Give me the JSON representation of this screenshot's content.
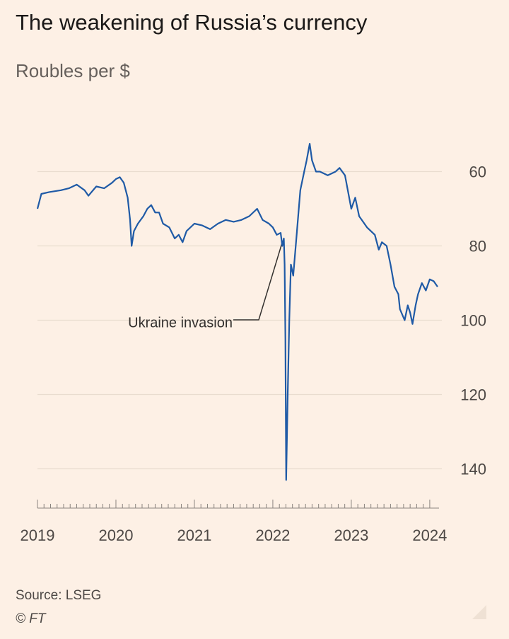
{
  "chart_data": {
    "type": "line",
    "title": "The weakening of Russia’s currency",
    "subtitle": "Roubles per $",
    "x": [
      2019.0,
      2019.05,
      2019.15,
      2019.3,
      2019.4,
      2019.5,
      2019.6,
      2019.65,
      2019.75,
      2019.85,
      2019.95,
      2020.0,
      2020.05,
      2020.1,
      2020.15,
      2020.18,
      2020.2,
      2020.23,
      2020.28,
      2020.35,
      2020.4,
      2020.45,
      2020.5,
      2020.55,
      2020.6,
      2020.68,
      2020.75,
      2020.8,
      2020.85,
      2020.9,
      2021.0,
      2021.1,
      2021.2,
      2021.3,
      2021.4,
      2021.5,
      2021.6,
      2021.7,
      2021.8,
      2021.87,
      2021.95,
      2022.0,
      2022.05,
      2022.1,
      2022.12,
      2022.14,
      2022.15,
      2022.16,
      2022.17,
      2022.19,
      2022.21,
      2022.23,
      2022.26,
      2022.3,
      2022.35,
      2022.4,
      2022.43,
      2022.47,
      2022.5,
      2022.55,
      2022.6,
      2022.7,
      2022.8,
      2022.85,
      2022.92,
      2023.0,
      2023.05,
      2023.1,
      2023.2,
      2023.3,
      2023.35,
      2023.39,
      2023.45,
      2023.5,
      2023.55,
      2023.6,
      2023.62,
      2023.68,
      2023.72,
      2023.75,
      2023.78,
      2023.82,
      2023.85,
      2023.9,
      2023.95,
      2024.0,
      2024.05,
      2024.1
    ],
    "series": [
      {
        "name": "Roubles per $",
        "color": "#1f5aa6",
        "values": [
          70,
          66,
          65.5,
          65,
          64.5,
          63.5,
          65,
          66.5,
          64,
          64.5,
          63,
          62,
          61.5,
          63,
          67,
          73,
          80,
          76,
          74,
          72,
          70,
          69,
          71,
          71,
          74,
          75,
          78,
          77,
          79,
          76,
          74,
          74.5,
          75.5,
          74,
          73,
          73.5,
          73,
          72,
          70,
          73,
          74,
          75,
          77,
          76.5,
          80,
          78,
          85,
          105,
          143,
          120,
          100,
          85,
          88,
          78,
          65,
          60,
          57,
          52.5,
          57,
          60,
          60,
          61,
          60,
          59,
          61,
          70,
          67,
          72,
          75,
          77,
          81,
          79,
          80,
          85,
          91,
          93,
          97,
          100,
          96,
          98,
          101,
          96,
          93,
          90,
          92,
          89,
          89.5,
          91
        ]
      }
    ],
    "xlim": [
      2019,
      2024.1
    ],
    "xticks": [
      2019,
      2020,
      2021,
      2022,
      2023,
      2024
    ],
    "ylim": [
      50,
      150
    ],
    "yticks": [
      60,
      80,
      100,
      120,
      140
    ],
    "y_inverted": true,
    "grid": true,
    "annotation": "Ukraine invasion",
    "source": "Source: LSEG",
    "copyright": "© FT"
  }
}
